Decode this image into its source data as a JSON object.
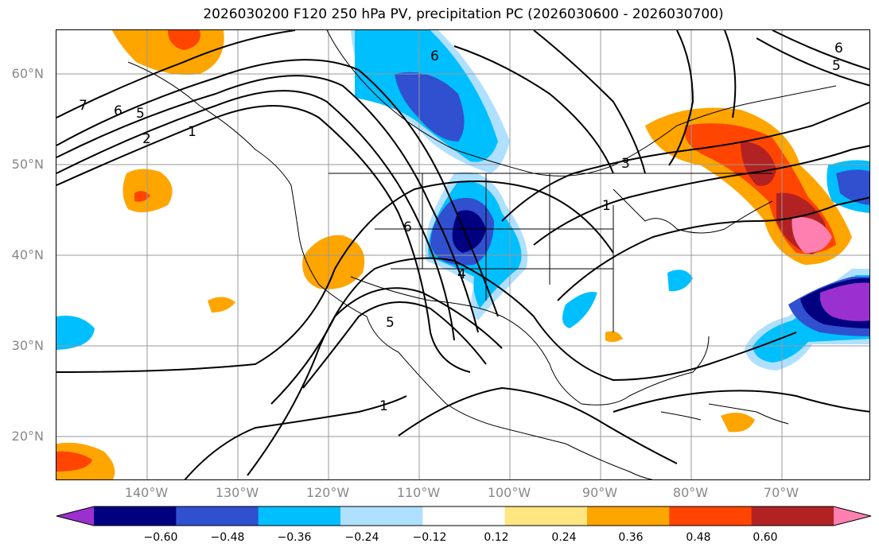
{
  "title": "2026030200 F120 250 hPa PV, precipitation PC (2026030600 - 2026030700)",
  "lat_labels": [
    "60°N",
    "50°N",
    "40°N",
    "30°N",
    "20°N"
  ],
  "lon_labels": [
    "140°W",
    "130°W",
    "120°W",
    "110°W",
    "100°W",
    "90°W",
    "80°W",
    "70°W"
  ],
  "colorbar": {
    "tick_labels": [
      "−0.60",
      "−0.48",
      "−0.36",
      "−0.24",
      "−0.12",
      "0.12",
      "0.24",
      "0.36",
      "0.48",
      "0.60"
    ],
    "colors": [
      "#9b30d0",
      "#000080",
      "#3050d0",
      "#00bfff",
      "#b0e0ff",
      "#ffffff",
      "#ffe680",
      "#ffa500",
      "#ff4500",
      "#b22222",
      "#ff80b0"
    ]
  },
  "contour_labels": [
    "7",
    "6",
    "5",
    "2",
    "1",
    "6",
    "6",
    "5",
    "1",
    "3",
    "6",
    "5",
    "4",
    "1"
  ]
}
